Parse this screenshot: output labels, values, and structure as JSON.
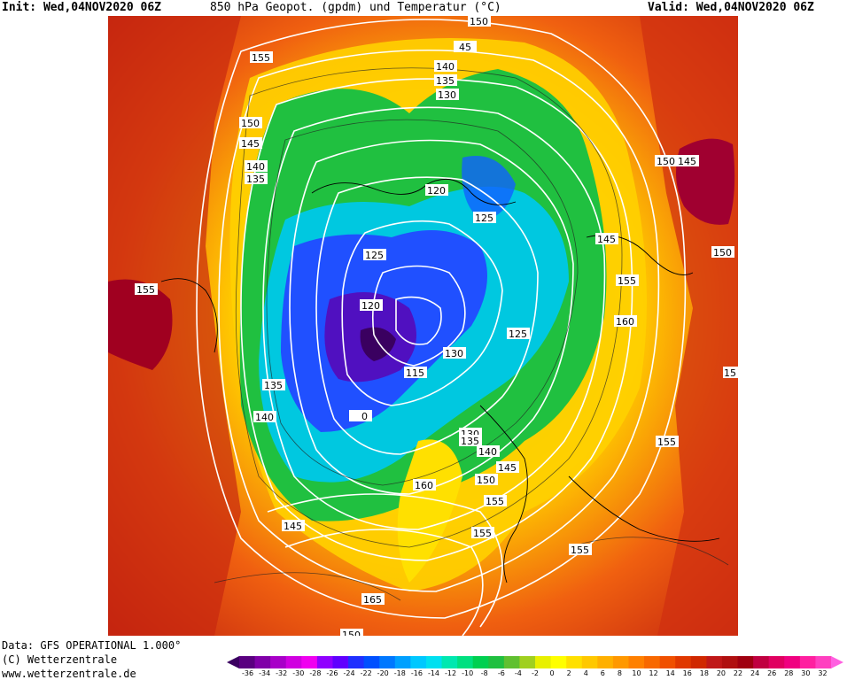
{
  "header": {
    "init": "Init: Wed,04NOV2020 06Z",
    "title": "850 hPa Geopot. (gpdm) und Temperatur (°C)",
    "valid": "Valid: Wed,04NOV2020 06Z"
  },
  "footer": {
    "data_line": "Data: GFS OPERATIONAL 1.000°",
    "copyright": "(C) Wetterzentrale",
    "url": "www.wetterzentrale.de"
  },
  "colors": {
    "scale": [
      "#3a0060",
      "#5a0080",
      "#8000a8",
      "#a800c8",
      "#d000e0",
      "#f000f0",
      "#9000ff",
      "#6000ff",
      "#2030ff",
      "#0050ff",
      "#0078ff",
      "#00a0ff",
      "#00c8ff",
      "#00e0f0",
      "#00e8b0",
      "#00e080",
      "#00d050",
      "#20c040",
      "#60c030",
      "#a0d020",
      "#e8f000",
      "#ffff00",
      "#ffe000",
      "#ffc800",
      "#ffb000",
      "#ff9800",
      "#ff8000",
      "#f86800",
      "#f05000",
      "#e03800",
      "#d02800",
      "#c01818",
      "#b01010",
      "#a00010",
      "#c00040",
      "#e00060",
      "#f00080",
      "#ff20a0",
      "#ff40c0",
      "#ff60e0"
    ]
  },
  "scale_ticks": [
    "-36",
    "-34",
    "-32",
    "-30",
    "-28",
    "-26",
    "-24",
    "-22",
    "-20",
    "-18",
    "-16",
    "-14",
    "-12",
    "-10",
    "-8",
    "-6",
    "-4",
    "-2",
    "0",
    "2",
    "4",
    "6",
    "8",
    "10",
    "12",
    "14",
    "16",
    "18",
    "20",
    "22",
    "24",
    "26",
    "28",
    "30",
    "32"
  ],
  "contour_labels": [
    "150",
    "45",
    "155",
    "140",
    "135",
    "130",
    "150",
    "145",
    "140",
    "135",
    "120",
    "125",
    "150",
    "145",
    "145",
    "125",
    "120",
    "150",
    "155",
    "160",
    "155",
    "130",
    "115",
    "125",
    "135",
    "0",
    "140",
    "130",
    "135",
    "140",
    "145",
    "150",
    "160",
    "155",
    "145",
    "155",
    "155",
    "15",
    "155",
    "165",
    "150"
  ]
}
